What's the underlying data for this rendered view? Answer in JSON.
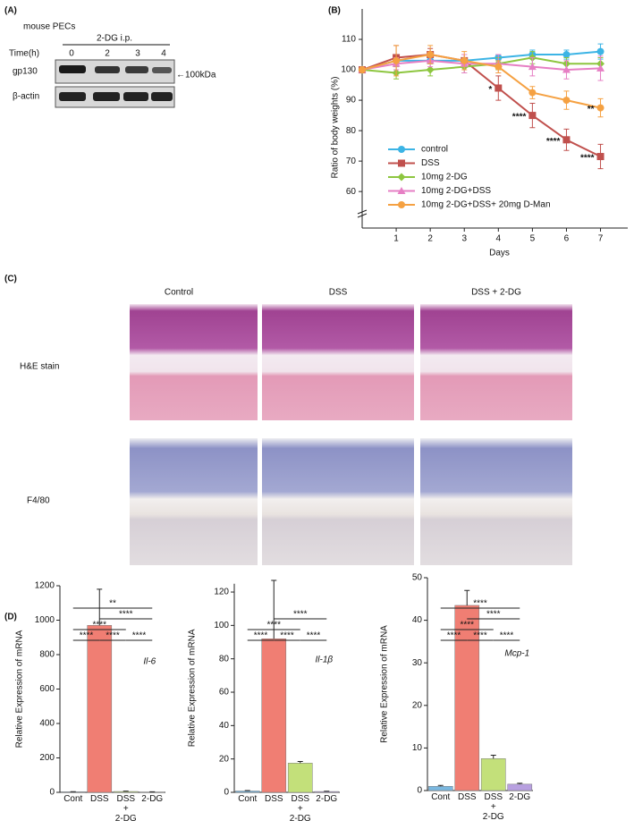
{
  "panel_labels": [
    "(A)",
    "(B)",
    "(C)",
    "(D)"
  ],
  "blot": {
    "cell": "mouse PECs",
    "treatment": "2-DG i.p.",
    "time_label": "Time(h)",
    "times": [
      "0",
      "2",
      "3",
      "4"
    ],
    "rows": [
      "gp130",
      "β-actin"
    ],
    "marker": "←100kDa"
  },
  "histology": {
    "columns": [
      "Control",
      "DSS",
      "DSS  + 2-DG"
    ],
    "rows": [
      "H&E stain",
      "F4/80"
    ]
  },
  "chart_data": [
    {
      "type": "line",
      "xlabel": "Days",
      "ylabel": "Ratio of body weights (%)",
      "x": [
        0,
        1,
        2,
        3,
        4,
        5,
        6,
        7
      ],
      "xlim": [
        0,
        7.8
      ],
      "xticks": [
        1,
        2,
        3,
        4,
        5,
        6,
        7
      ],
      "ylim": [
        48,
        120
      ],
      "yticks": [
        60,
        70,
        80,
        90,
        100,
        110
      ],
      "legend": "lower left",
      "series": [
        {
          "name": "control",
          "color": "#3cb4e5",
          "marker": "circle",
          "values": [
            100,
            103,
            103,
            103,
            104,
            105,
            105,
            106
          ],
          "errors": [
            0,
            1,
            1,
            1,
            1,
            1.5,
            1.5,
            2.5
          ]
        },
        {
          "name": "DSS",
          "color": "#c0504d",
          "marker": "square",
          "values": [
            100,
            104,
            105,
            103,
            94,
            85,
            77,
            71.5
          ],
          "errors": [
            0,
            4,
            2,
            2,
            4,
            4,
            3.5,
            4
          ],
          "annotations": [
            null,
            null,
            null,
            null,
            "*",
            "****",
            "****",
            "****"
          ]
        },
        {
          "name": "10mg  2-DG",
          "color": "#8dc63f",
          "marker": "diamond",
          "values": [
            100,
            99,
            100,
            101,
            102,
            104,
            102,
            102
          ],
          "errors": [
            0,
            2,
            2,
            2,
            2,
            2,
            2,
            2
          ]
        },
        {
          "name": "10mg  2-DG+DSS",
          "color": "#e67fc4",
          "marker": "triangle",
          "values": [
            100,
            102,
            103,
            102,
            102,
            101,
            100,
            100.5
          ],
          "errors": [
            0,
            2,
            2,
            3,
            3,
            3,
            3,
            4
          ]
        },
        {
          "name": "10mg  2-DG+DSS+ 20mg D-Man",
          "color": "#f5a142",
          "marker": "circle",
          "values": [
            100,
            103,
            105,
            103,
            101,
            92.5,
            90,
            87.5
          ],
          "errors": [
            0,
            5,
            3,
            3,
            2,
            2,
            3,
            3
          ],
          "annotations": [
            null,
            null,
            null,
            null,
            null,
            null,
            null,
            "**"
          ]
        }
      ]
    },
    {
      "type": "bar",
      "title": "Il-6",
      "ylabel": "Relative Expression of mRNA",
      "categories": [
        "Cont",
        "DSS",
        "DSS\n+\n2-DG",
        "2-DG"
      ],
      "values": [
        3,
        970,
        5,
        2
      ],
      "errors": [
        1,
        210,
        2,
        1
      ],
      "colors": [
        "#7ab8e0",
        "#f07e73",
        "#c3e07a",
        "#b8a0e0"
      ],
      "ylim": [
        0,
        1200
      ],
      "yticks": [
        0,
        200,
        400,
        600,
        800,
        1000,
        1200
      ],
      "comparisons": [
        {
          "from": 0,
          "to": 1,
          "label": "****"
        },
        {
          "from": 1,
          "to": 2,
          "label": "****"
        },
        {
          "from": 2,
          "to": 3,
          "label": "****"
        },
        {
          "from": 0,
          "to": 2,
          "label": "****"
        },
        {
          "from": 1,
          "to": 3,
          "label": "****"
        },
        {
          "from": 0,
          "to": 3,
          "label": "**"
        }
      ]
    },
    {
      "type": "bar",
      "title": "Il-1β",
      "ylabel": "Relative Expression of mRNA",
      "categories": [
        "Cont",
        "DSS",
        "DSS\n+\n2-DG",
        "2-DG"
      ],
      "values": [
        0.8,
        92,
        17.5,
        0.5
      ],
      "errors": [
        0.3,
        35,
        1,
        0.2
      ],
      "colors": [
        "#7ab8e0",
        "#f07e73",
        "#c3e07a",
        "#b8a0e0"
      ],
      "ylim": [
        0,
        125
      ],
      "yticks": [
        0,
        20,
        40,
        60,
        80,
        100,
        120
      ],
      "comparisons": [
        {
          "from": 0,
          "to": 1,
          "label": "****"
        },
        {
          "from": 1,
          "to": 2,
          "label": "****"
        },
        {
          "from": 2,
          "to": 3,
          "label": "****"
        },
        {
          "from": 0,
          "to": 2,
          "label": "****"
        },
        {
          "from": 1,
          "to": 3,
          "label": "****"
        }
      ]
    },
    {
      "type": "bar",
      "title": "Mcp-1",
      "ylabel": "Relative Expression of mRNA",
      "categories": [
        "Cont",
        "DSS",
        "DSS\n+\n2-DG",
        "2-DG"
      ],
      "values": [
        1,
        43.5,
        7.5,
        1.5
      ],
      "errors": [
        0.2,
        3.5,
        0.8,
        0.2
      ],
      "colors": [
        "#7ab8e0",
        "#f07e73",
        "#c3e07a",
        "#b8a0e0"
      ],
      "ylim": [
        0,
        50
      ],
      "yticks": [
        0,
        10,
        20,
        30,
        40,
        50
      ],
      "comparisons": [
        {
          "from": 0,
          "to": 1,
          "label": "****"
        },
        {
          "from": 1,
          "to": 2,
          "label": "****"
        },
        {
          "from": 2,
          "to": 3,
          "label": "****"
        },
        {
          "from": 0,
          "to": 2,
          "label": "****"
        },
        {
          "from": 1,
          "to": 3,
          "label": "****"
        },
        {
          "from": 0,
          "to": 3,
          "label": "****"
        }
      ]
    }
  ]
}
